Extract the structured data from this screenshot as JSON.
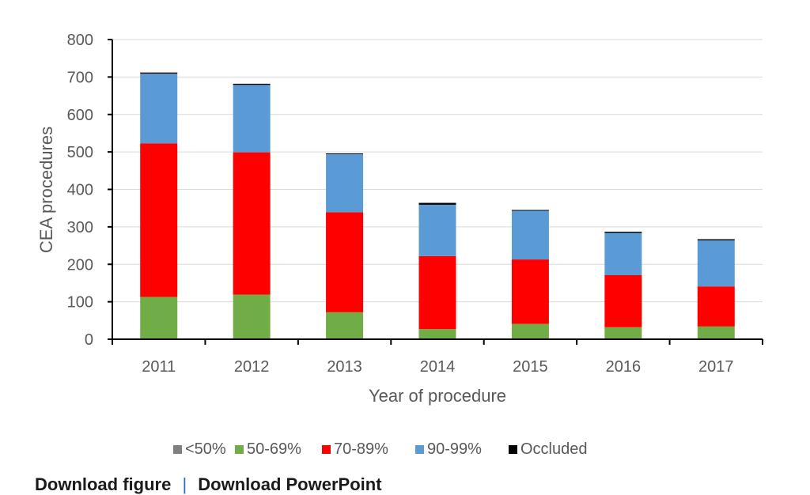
{
  "chart_data": {
    "type": "bar",
    "stacked": true,
    "categories": [
      "2011",
      "2012",
      "2013",
      "2014",
      "2015",
      "2016",
      "2017"
    ],
    "series": [
      {
        "name": "<50%",
        "color": "#808080",
        "values": [
          2,
          2,
          1,
          1,
          1,
          1,
          1
        ]
      },
      {
        "name": "50-69%",
        "color": "#70ad47",
        "values": [
          111,
          117,
          71,
          26,
          40,
          31,
          33
        ]
      },
      {
        "name": "70-89%",
        "color": "#ff0000",
        "values": [
          410,
          380,
          267,
          195,
          172,
          139,
          107
        ]
      },
      {
        "name": "90-99%",
        "color": "#5b9bd5",
        "values": [
          186,
          180,
          155,
          137,
          130,
          113,
          123
        ]
      },
      {
        "name": "Occluded",
        "color": "#000000",
        "values": [
          3,
          3,
          2,
          5,
          2,
          3,
          3
        ]
      }
    ],
    "xlabel": "Year of procedure",
    "ylabel": "CEA procedures",
    "ylim": [
      0,
      800
    ],
    "yticks": [
      "0",
      "100",
      "200",
      "300",
      "400",
      "500",
      "600",
      "700",
      "800"
    ],
    "grid": true,
    "legend_position": "bottom"
  },
  "footer": {
    "left_link": "Download figure",
    "separator": "|",
    "right_link": "Download PowerPoint"
  }
}
